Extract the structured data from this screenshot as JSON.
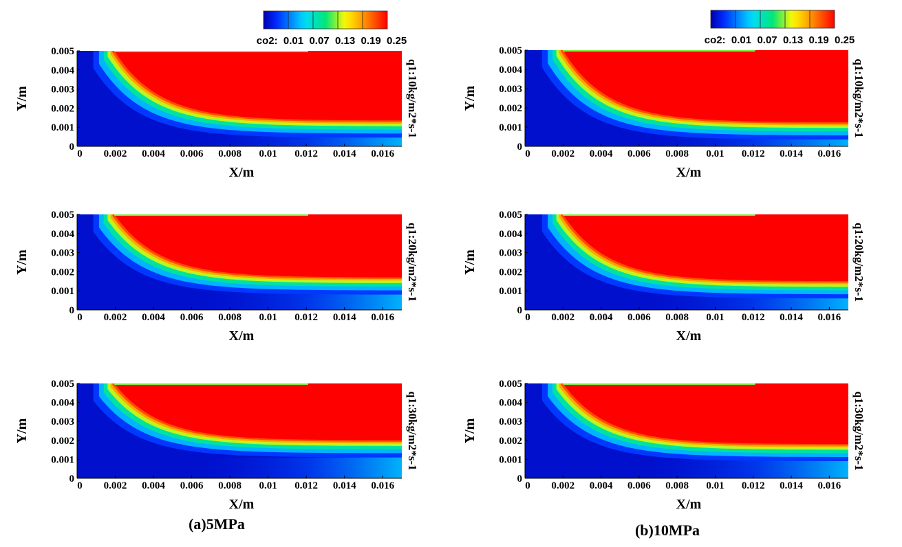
{
  "chart_data": {
    "type": "heatmap",
    "variable": "co2",
    "colorbar": {
      "label": "co2:",
      "ticks": [
        "0.01",
        "0.07",
        "0.13",
        "0.19",
        "0.25"
      ],
      "min": 0.01,
      "max": 0.25,
      "colormap": "jet"
    },
    "axes": {
      "xlabel": "X/m",
      "ylabel": "Y/m",
      "xlim": [
        0,
        0.017
      ],
      "ylim": [
        0,
        0.005
      ],
      "xticks": [
        "0",
        "0.002",
        "0.004",
        "0.006",
        "0.008",
        "0.01",
        "0.012",
        "0.014",
        "0.016"
      ],
      "yticks": [
        "0",
        "0.001",
        "0.002",
        "0.003",
        "0.004",
        "0.005"
      ]
    },
    "panels": [
      {
        "group": "(a)5MPa",
        "label": "q1:10kg/m2*s-1",
        "front_x": 0.00195,
        "interface_y_end": 0.00135
      },
      {
        "group": "(a)5MPa",
        "label": "q1:20kg/m2*s-1",
        "front_x": 0.00195,
        "interface_y_end": 0.0017
      },
      {
        "group": "(a)5MPa",
        "label": "q1:30kg/m2*s-1",
        "front_x": 0.00195,
        "interface_y_end": 0.002
      },
      {
        "group": "(b)10MPa",
        "label": "q1:10kg/m2*s-1",
        "front_x": 0.002,
        "interface_y_end": 0.00125
      },
      {
        "group": "(b)10MPa",
        "label": "q1:20kg/m2*s-1",
        "front_x": 0.002,
        "interface_y_end": 0.0015
      },
      {
        "group": "(b)10MPa",
        "label": "q1:30kg/m2*s-1",
        "front_x": 0.002,
        "interface_y_end": 0.0018
      }
    ]
  },
  "captions": {
    "left": "(a)5MPa",
    "right": "(b)10MPa"
  }
}
